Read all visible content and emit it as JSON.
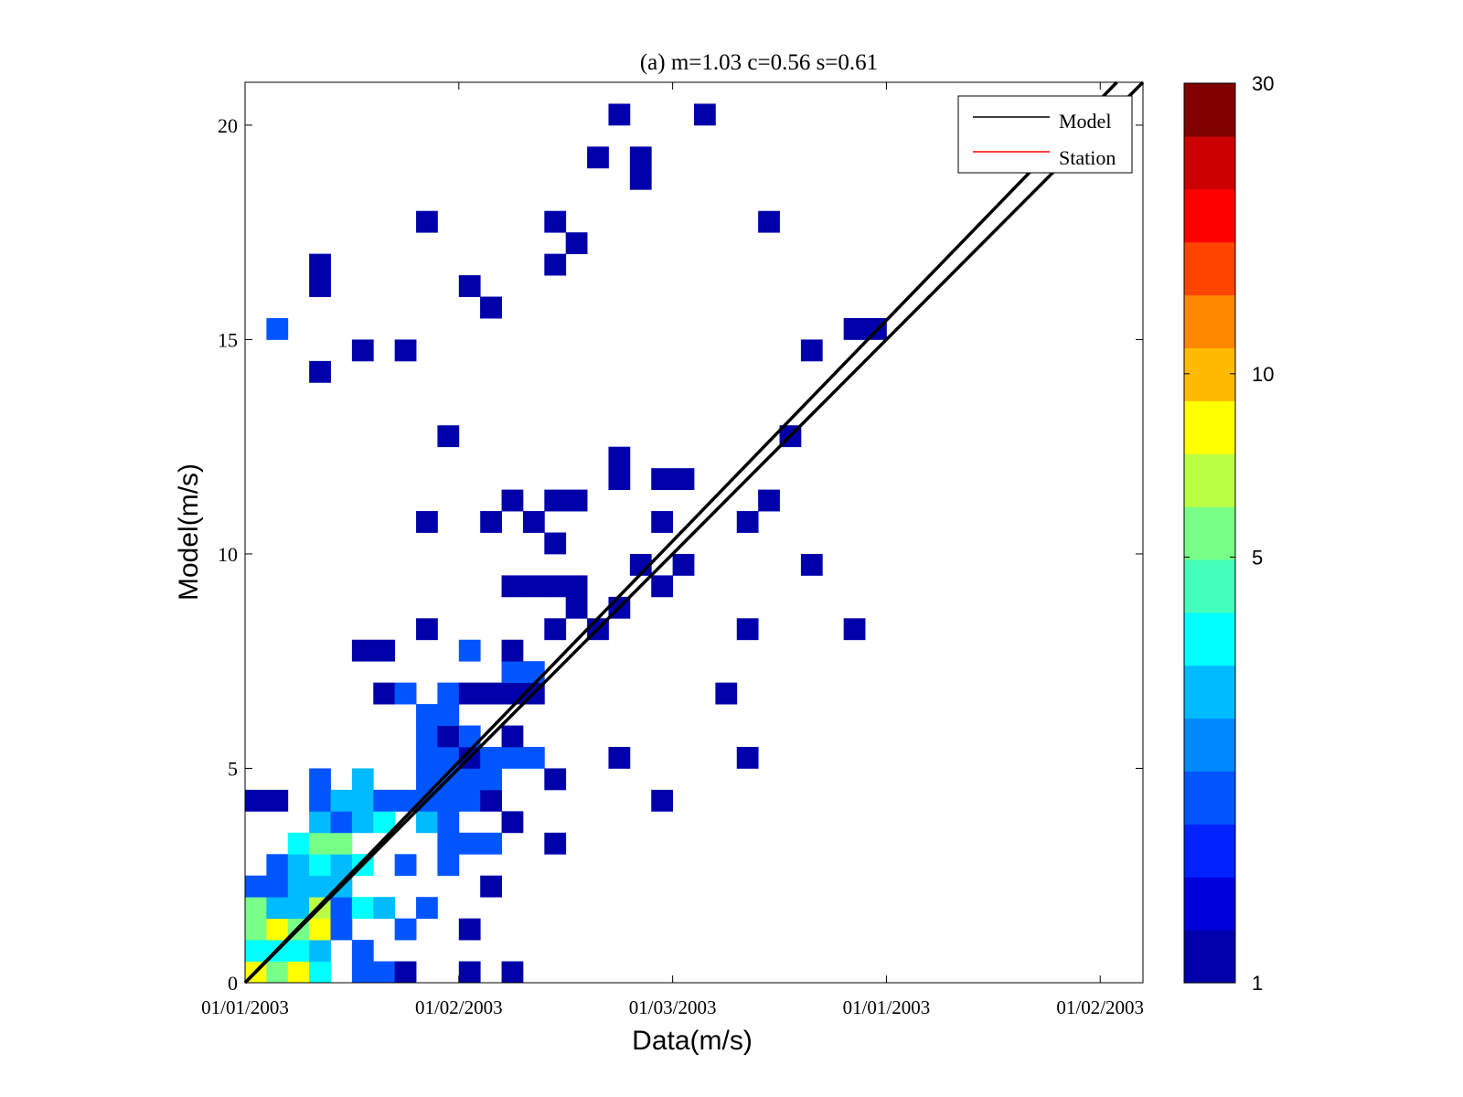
{
  "chart_data": {
    "type": "heatmap",
    "title": "(a) m=1.03 c=0.56 s=0.61",
    "xlabel": "Data(m/s)",
    "ylabel": "Model(m/s)",
    "xlim": [
      0,
      21
    ],
    "ylim": [
      0,
      21
    ],
    "bin_size": 0.5,
    "x_ticks": [
      {
        "value": 0,
        "label": "01/01/2003"
      },
      {
        "value": 5,
        "label": "01/02/2003"
      },
      {
        "value": 10,
        "label": "01/03/2003"
      },
      {
        "value": 15,
        "label": "01/01/2003"
      },
      {
        "value": 20,
        "label": "01/02/2003"
      }
    ],
    "y_ticks": [
      {
        "value": 0,
        "label": "0"
      },
      {
        "value": 5,
        "label": "5"
      },
      {
        "value": 10,
        "label": "10"
      },
      {
        "value": 15,
        "label": "15"
      },
      {
        "value": 20,
        "label": "20"
      }
    ],
    "legend": {
      "placement": "top-right",
      "entries": [
        {
          "label": "Model",
          "color": "#000000"
        },
        {
          "label": "Station",
          "color": "#ff0000"
        }
      ]
    },
    "lines": [
      {
        "name": "Model",
        "slope": 1.03,
        "intercept": 0.0,
        "color": "#000000"
      },
      {
        "name": "Station",
        "slope": 1.0,
        "intercept": 0.0,
        "color": "#000000"
      }
    ],
    "colorbar": {
      "scale": "log",
      "range": [
        1,
        30
      ],
      "tick_values": [
        1,
        5,
        10,
        30
      ],
      "tick_labels": [
        "1",
        "5",
        "10",
        "30"
      ],
      "colors": [
        "#0000aa",
        "#0000dd",
        "#0022ff",
        "#0055ff",
        "#0088ff",
        "#00bbff",
        "#00ffff",
        "#44ffbb",
        "#77ff88",
        "#bbff44",
        "#ffff00",
        "#ffbb00",
        "#ff8800",
        "#ff4400",
        "#ff0000",
        "#cc0000",
        "#800000"
      ]
    },
    "grid": false,
    "isolated_points": [
      {
        "x": 0.6,
        "y": 15.0,
        "count": 2
      },
      {
        "x": 1.5,
        "y": 16.8,
        "count": 1
      },
      {
        "x": 1.5,
        "y": 16.2,
        "count": 1
      },
      {
        "x": 4.2,
        "y": 17.7,
        "count": 1
      },
      {
        "x": 5.0,
        "y": 16.4,
        "count": 1
      },
      {
        "x": 5.5,
        "y": 15.9,
        "count": 1
      },
      {
        "x": 5.5,
        "y": 15.5,
        "count": 1
      },
      {
        "x": 7.0,
        "y": 17.9,
        "count": 1
      },
      {
        "x": 7.0,
        "y": 16.6,
        "count": 1
      },
      {
        "x": 7.5,
        "y": 17.2,
        "count": 1
      },
      {
        "x": 8.5,
        "y": 20.2,
        "count": 1
      },
      {
        "x": 8.2,
        "y": 19.4,
        "count": 1
      },
      {
        "x": 9.0,
        "y": 19.2,
        "count": 1
      },
      {
        "x": 9.0,
        "y": 18.5,
        "count": 1
      },
      {
        "x": 10.8,
        "y": 20.0,
        "count": 1
      },
      {
        "x": 12.0,
        "y": 17.7,
        "count": 1
      },
      {
        "x": 13.0,
        "y": 14.5,
        "count": 1
      },
      {
        "x": 14.5,
        "y": 15.0,
        "count": 1
      },
      {
        "x": 14.0,
        "y": 15.0,
        "count": 1
      },
      {
        "x": 3.5,
        "y": 14.9,
        "count": 1
      },
      {
        "x": 2.5,
        "y": 14.5,
        "count": 1
      },
      {
        "x": 1.7,
        "y": 14.3,
        "count": 1
      },
      {
        "x": 14.0,
        "y": 8.0,
        "count": 1
      }
    ]
  }
}
